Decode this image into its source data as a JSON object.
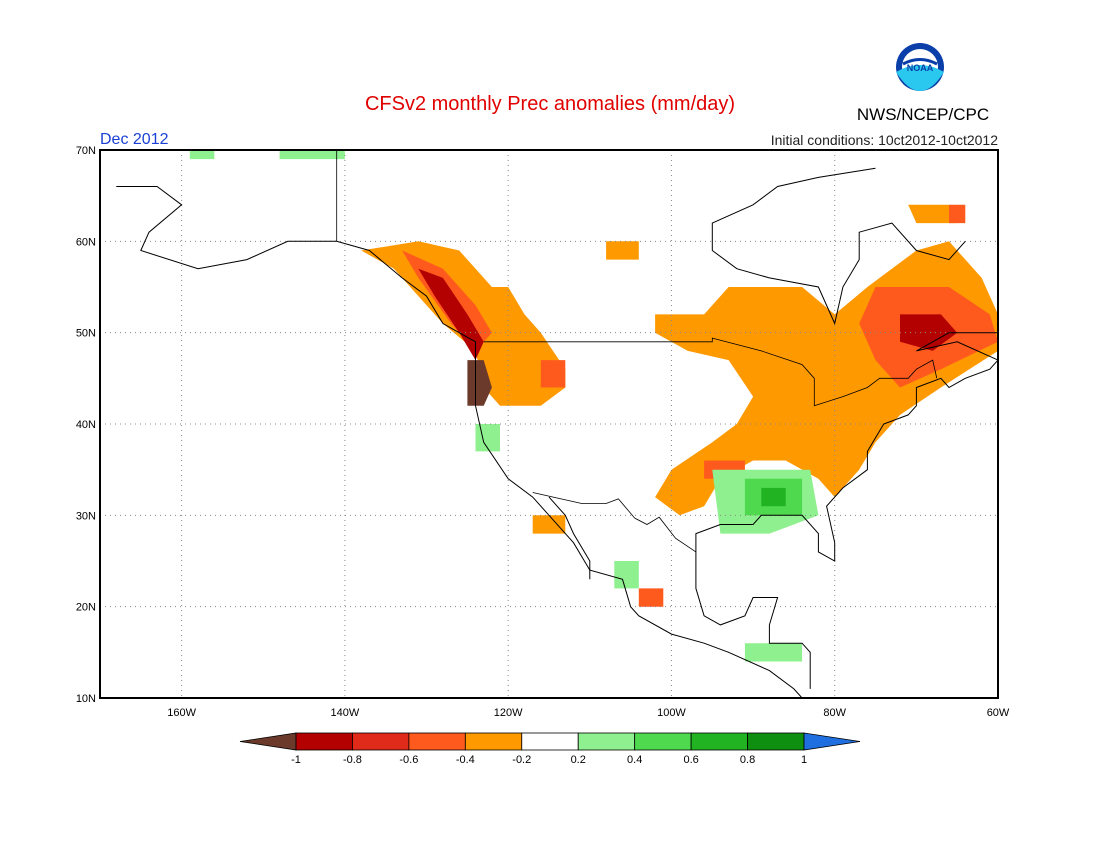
{
  "title": "CFSv2 monthly Prec anomalies (mm/day)",
  "month_label": "Dec 2012",
  "init_label": "Initial conditions: 10ct2012-10ct2012",
  "agency": "NWS/NCEP/CPC",
  "logo_text": "NOAA",
  "colors": {
    "title": "#e00000",
    "month": "#1a3fd6",
    "frame": "#000000",
    "grid": "#888888",
    "land": "#ffffff",
    "coast": "#000000"
  },
  "map": {
    "lon_range": [
      -170,
      -60
    ],
    "lat_range": [
      10,
      70
    ],
    "lat_ticks": [
      {
        "lat": 70,
        "label": "70N"
      },
      {
        "lat": 60,
        "label": "60N"
      },
      {
        "lat": 50,
        "label": "50N"
      },
      {
        "lat": 40,
        "label": "40N"
      },
      {
        "lat": 30,
        "label": "30N"
      },
      {
        "lat": 20,
        "label": "20N"
      },
      {
        "lat": 10,
        "label": "10N"
      }
    ],
    "lon_ticks": [
      {
        "lon": -160,
        "label": "160W"
      },
      {
        "lon": -140,
        "label": "140W"
      },
      {
        "lon": -120,
        "label": "120W"
      },
      {
        "lon": -100,
        "label": "100W"
      },
      {
        "lon": -80,
        "label": "80W"
      },
      {
        "lon": -60,
        "label": "60W"
      }
    ]
  },
  "colorbar": {
    "bins": [
      {
        "color": "#6b3a2a"
      },
      {
        "color": "#b30000"
      },
      {
        "color": "#e02a1a"
      },
      {
        "color": "#ff5a1e"
      },
      {
        "color": "#ff9900"
      },
      {
        "color": "#ffffff"
      },
      {
        "color": "#8ef08e"
      },
      {
        "color": "#4fd94f"
      },
      {
        "color": "#22b322"
      },
      {
        "color": "#0f8f0f"
      },
      {
        "color": "#1f6fe0"
      }
    ],
    "labels": [
      "-1",
      "-0.8",
      "-0.6",
      "-0.4",
      "-0.2",
      "0.2",
      "0.4",
      "0.6",
      "0.8",
      "1"
    ]
  },
  "anomaly_regions": [
    {
      "cls": "-0.4",
      "color": "#ff9900",
      "pts": [
        [
          -131,
          60
        ],
        [
          -126,
          59
        ],
        [
          -122,
          55
        ],
        [
          -120,
          55
        ],
        [
          -118,
          52
        ],
        [
          -116,
          50
        ],
        [
          -113,
          46
        ],
        [
          -113,
          44
        ],
        [
          -116,
          42
        ],
        [
          -121,
          42
        ],
        [
          -123,
          44
        ],
        [
          -124,
          48
        ],
        [
          -128,
          51
        ],
        [
          -134,
          57
        ],
        [
          -138,
          59
        ]
      ]
    },
    {
      "cls": "-0.4",
      "color": "#ff9900",
      "pts": [
        [
          -108,
          60
        ],
        [
          -104,
          60
        ],
        [
          -104,
          58
        ],
        [
          -108,
          58
        ]
      ]
    },
    {
      "cls": "-0.4",
      "color": "#ff9900",
      "pts": [
        [
          -102,
          52
        ],
        [
          -96,
          52
        ],
        [
          -93,
          55
        ],
        [
          -84,
          55
        ],
        [
          -80,
          52
        ],
        [
          -76,
          55
        ],
        [
          -70,
          59
        ],
        [
          -66,
          60
        ],
        [
          -62,
          56
        ],
        [
          -60,
          52
        ],
        [
          -60,
          48
        ],
        [
          -67,
          44
        ],
        [
          -72,
          41
        ],
        [
          -75,
          38
        ],
        [
          -77,
          35
        ],
        [
          -80,
          32
        ],
        [
          -82,
          34
        ],
        [
          -86,
          36
        ],
        [
          -90,
          36
        ],
        [
          -94,
          34
        ],
        [
          -96,
          31
        ],
        [
          -99,
          30
        ],
        [
          -102,
          32
        ],
        [
          -100,
          35
        ],
        [
          -95,
          38
        ],
        [
          -92,
          40
        ],
        [
          -90,
          43
        ],
        [
          -93,
          47
        ],
        [
          -98,
          48
        ],
        [
          -102,
          50
        ]
      ]
    },
    {
      "cls": "-0.4",
      "color": "#ff9900",
      "pts": [
        [
          -71,
          64
        ],
        [
          -66,
          64
        ],
        [
          -65,
          62
        ],
        [
          -70,
          62
        ]
      ]
    },
    {
      "cls": "-0.4",
      "color": "#ff9900",
      "pts": [
        [
          -117,
          30
        ],
        [
          -113,
          30
        ],
        [
          -113,
          28
        ],
        [
          -117,
          28
        ]
      ]
    },
    {
      "cls": "-0.6",
      "color": "#ff5a1e",
      "pts": [
        [
          -133,
          59
        ],
        [
          -128,
          57
        ],
        [
          -124,
          53
        ],
        [
          -122,
          50
        ],
        [
          -124,
          48
        ],
        [
          -127,
          51
        ],
        [
          -131,
          56
        ]
      ]
    },
    {
      "cls": "-0.6",
      "color": "#ff5a1e",
      "pts": [
        [
          -116,
          47
        ],
        [
          -113,
          47
        ],
        [
          -113,
          44
        ],
        [
          -116,
          44
        ]
      ]
    },
    {
      "cls": "-0.6",
      "color": "#ff5a1e",
      "pts": [
        [
          -75,
          55
        ],
        [
          -66,
          55
        ],
        [
          -61,
          52
        ],
        [
          -60,
          49
        ],
        [
          -67,
          46
        ],
        [
          -72,
          44
        ],
        [
          -75,
          47
        ],
        [
          -77,
          51
        ]
      ]
    },
    {
      "cls": "-0.6",
      "color": "#ff5a1e",
      "pts": [
        [
          -96,
          36
        ],
        [
          -91,
          36
        ],
        [
          -91,
          34
        ],
        [
          -96,
          34
        ]
      ]
    },
    {
      "cls": "-0.6",
      "color": "#ff5a1e",
      "pts": [
        [
          -104,
          22
        ],
        [
          -101,
          22
        ],
        [
          -101,
          20
        ],
        [
          -104,
          20
        ]
      ]
    },
    {
      "cls": "-0.6",
      "color": "#ff5a1e",
      "pts": [
        [
          -66,
          64
        ],
        [
          -64,
          64
        ],
        [
          -64,
          62
        ],
        [
          -66,
          62
        ]
      ]
    },
    {
      "cls": "-0.8",
      "color": "#b30000",
      "pts": [
        [
          -131,
          57
        ],
        [
          -128,
          56
        ],
        [
          -125,
          52
        ],
        [
          -123,
          49
        ],
        [
          -124,
          47
        ],
        [
          -126,
          50
        ],
        [
          -129,
          54
        ]
      ]
    },
    {
      "cls": "-0.8",
      "color": "#b30000",
      "pts": [
        [
          -72,
          52
        ],
        [
          -67,
          52
        ],
        [
          -65,
          50
        ],
        [
          -68,
          48
        ],
        [
          -72,
          49
        ]
      ]
    },
    {
      "cls": "-1",
      "color": "#6b3a2a",
      "pts": [
        [
          -125,
          47
        ],
        [
          -123,
          47
        ],
        [
          -122,
          44
        ],
        [
          -123,
          42
        ],
        [
          -125,
          42
        ]
      ]
    },
    {
      "cls": "0.4",
      "color": "#8ef08e",
      "pts": [
        [
          -148,
          70
        ],
        [
          -140,
          70
        ],
        [
          -140,
          69
        ],
        [
          -148,
          69
        ]
      ]
    },
    {
      "cls": "0.4",
      "color": "#8ef08e",
      "pts": [
        [
          -159,
          70
        ],
        [
          -156,
          70
        ],
        [
          -156,
          69
        ],
        [
          -159,
          69
        ]
      ]
    },
    {
      "cls": "0.4",
      "color": "#8ef08e",
      "pts": [
        [
          -124,
          40
        ],
        [
          -121,
          40
        ],
        [
          -121,
          37
        ],
        [
          -124,
          37
        ]
      ]
    },
    {
      "cls": "0.4",
      "color": "#8ef08e",
      "pts": [
        [
          -95,
          35
        ],
        [
          -83,
          35
        ],
        [
          -82,
          30
        ],
        [
          -88,
          28
        ],
        [
          -94,
          28
        ]
      ]
    },
    {
      "cls": "0.4",
      "color": "#8ef08e",
      "pts": [
        [
          -107,
          25
        ],
        [
          -104,
          25
        ],
        [
          -104,
          22
        ],
        [
          -107,
          22
        ]
      ]
    },
    {
      "cls": "0.4",
      "color": "#8ef08e",
      "pts": [
        [
          -91,
          16
        ],
        [
          -84,
          16
        ],
        [
          -84,
          14
        ],
        [
          -91,
          14
        ]
      ]
    },
    {
      "cls": "0.6",
      "color": "#4fd94f",
      "pts": [
        [
          -91,
          34
        ],
        [
          -84,
          34
        ],
        [
          -84,
          30
        ],
        [
          -91,
          30
        ]
      ]
    },
    {
      "cls": "0.8",
      "color": "#22b322",
      "pts": [
        [
          -89,
          33
        ],
        [
          -86,
          33
        ],
        [
          -86,
          31
        ],
        [
          -89,
          31
        ]
      ]
    }
  ],
  "coastlines": [
    [
      [
        -168,
        66
      ],
      [
        -163,
        66
      ],
      [
        -160,
        64
      ],
      [
        -164,
        61
      ],
      [
        -165,
        59
      ],
      [
        -158,
        57
      ],
      [
        -152,
        58
      ],
      [
        -147,
        60
      ],
      [
        -141,
        60
      ],
      [
        -137,
        59
      ],
      [
        -133,
        56
      ],
      [
        -130,
        54
      ],
      [
        -128,
        51
      ],
      [
        -124,
        49
      ],
      [
        -124,
        46
      ],
      [
        -124,
        42
      ],
      [
        -123,
        38
      ],
      [
        -120,
        34
      ],
      [
        -117,
        32
      ],
      [
        -115,
        30
      ],
      [
        -112,
        27
      ],
      [
        -110,
        24
      ],
      [
        -106,
        23
      ],
      [
        -105,
        20
      ],
      [
        -104,
        19
      ],
      [
        -100,
        17
      ],
      [
        -96,
        16
      ],
      [
        -93,
        15
      ],
      [
        -88,
        13
      ],
      [
        -85,
        11
      ],
      [
        -84,
        10
      ]
    ],
    [
      [
        -115,
        32
      ],
      [
        -113,
        30
      ],
      [
        -112,
        28
      ],
      [
        -110,
        25
      ],
      [
        -110,
        23
      ]
    ],
    [
      [
        -97,
        26
      ],
      [
        -97,
        28
      ],
      [
        -94,
        29
      ],
      [
        -90,
        29
      ],
      [
        -89,
        30
      ],
      [
        -86,
        30
      ],
      [
        -84,
        30
      ],
      [
        -82,
        28
      ],
      [
        -82,
        26
      ],
      [
        -80,
        25
      ],
      [
        -80,
        27
      ],
      [
        -81,
        31
      ],
      [
        -79,
        33
      ],
      [
        -76,
        35
      ],
      [
        -76,
        37
      ],
      [
        -74,
        40
      ],
      [
        -71,
        41
      ],
      [
        -70,
        42
      ],
      [
        -70,
        44
      ],
      [
        -67,
        45
      ],
      [
        -66,
        44
      ],
      [
        -64,
        45
      ],
      [
        -61,
        46
      ],
      [
        -60,
        47
      ]
    ],
    [
      [
        -97,
        26
      ],
      [
        -97,
        22
      ],
      [
        -96,
        19
      ],
      [
        -94,
        18
      ],
      [
        -91,
        19
      ],
      [
        -90,
        21
      ],
      [
        -87,
        21
      ],
      [
        -88,
        18
      ],
      [
        -88,
        16
      ],
      [
        -84,
        16
      ],
      [
        -83,
        15
      ],
      [
        -83,
        11
      ]
    ],
    [
      [
        -60,
        47
      ],
      [
        -65,
        49
      ],
      [
        -70,
        48
      ],
      [
        -66,
        50
      ],
      [
        -60,
        50
      ]
    ],
    [
      [
        -95,
        59
      ],
      [
        -92,
        57
      ],
      [
        -88,
        56
      ],
      [
        -82,
        55
      ],
      [
        -80,
        51
      ],
      [
        -79,
        55
      ],
      [
        -77,
        58
      ],
      [
        -77,
        61
      ],
      [
        -73,
        62
      ],
      [
        -70,
        59
      ],
      [
        -66,
        58
      ],
      [
        -64,
        60
      ]
    ],
    [
      [
        -95,
        59
      ],
      [
        -95,
        62
      ],
      [
        -90,
        64
      ],
      [
        -87,
        66
      ],
      [
        -82,
        67
      ],
      [
        -75,
        68
      ]
    ]
  ],
  "borders": [
    [
      [
        -141,
        70
      ],
      [
        -141,
        60
      ]
    ],
    [
      [
        -123,
        49
      ],
      [
        -95,
        49
      ],
      [
        -95,
        49.4
      ],
      [
        -89,
        48
      ],
      [
        -84,
        46.5
      ],
      [
        -82.5,
        45
      ],
      [
        -82.5,
        42
      ],
      [
        -79,
        43
      ],
      [
        -76,
        44
      ],
      [
        -74.5,
        45
      ],
      [
        -71,
        45
      ],
      [
        -70,
        46
      ],
      [
        -68,
        47
      ],
      [
        -67.5,
        45
      ]
    ],
    [
      [
        -117,
        32.5
      ],
      [
        -111,
        31.3
      ],
      [
        -108,
        31.3
      ],
      [
        -106.5,
        31.8
      ],
      [
        -104.5,
        29.7
      ],
      [
        -103,
        29
      ],
      [
        -101.5,
        29.8
      ],
      [
        -99.5,
        27.5
      ],
      [
        -97,
        26
      ]
    ]
  ]
}
